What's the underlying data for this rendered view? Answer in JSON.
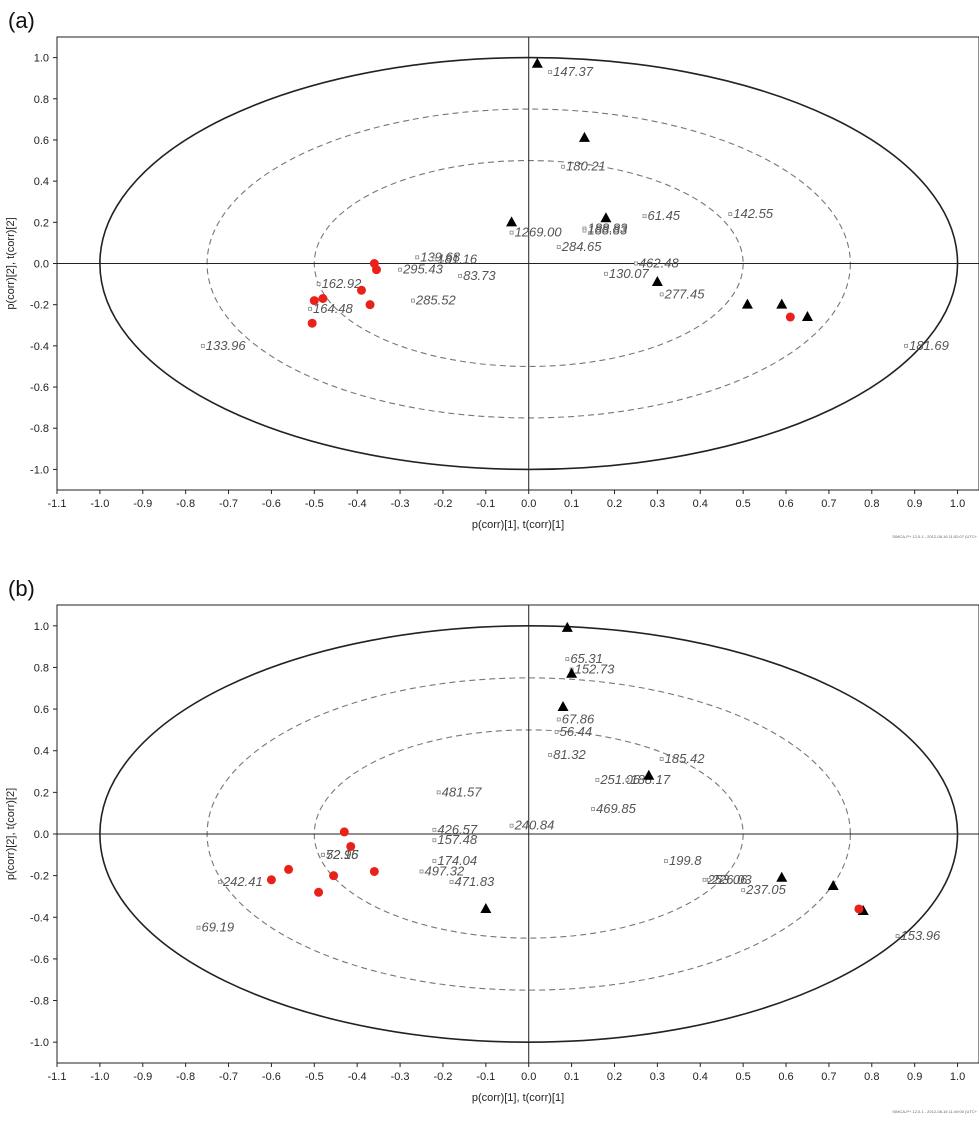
{
  "chart_data": [
    {
      "panel": "(a)",
      "type": "scatter",
      "xlabel": "p(corr)[1], t(corr)[1]",
      "ylabel": "p(corr)[2], t(corr)[2]",
      "xlim": [
        -1.1,
        1.05
      ],
      "ylim": [
        -1.1,
        1.1
      ],
      "xticks": [
        "-1.1",
        "-1.0",
        "-0.9",
        "-0.8",
        "-0.7",
        "-0.6",
        "-0.5",
        "-0.4",
        "-0.3",
        "-0.2",
        "-0.1",
        "0.0",
        "0.1",
        "0.2",
        "0.3",
        "0.4",
        "0.5",
        "0.6",
        "0.7",
        "0.8",
        "0.9",
        "1.0"
      ],
      "yticks": [
        "1.0",
        "0.8",
        "0.6",
        "0.4",
        "0.2",
        "0.0",
        "-0.2",
        "-0.4",
        "-0.6",
        "-0.8",
        "-1.0"
      ],
      "footer": "SIMCA-P+ 12.0.1 - 2012-08-16 11:52:07 (UTC+",
      "variables": [
        {
          "label": "147.37",
          "x": 0.05,
          "y": 0.93
        },
        {
          "label": "180.21",
          "x": 0.08,
          "y": 0.47
        },
        {
          "label": "61.45",
          "x": 0.27,
          "y": 0.23
        },
        {
          "label": "142.55",
          "x": 0.47,
          "y": 0.24
        },
        {
          "label": "188.83",
          "x": 0.13,
          "y": 0.17
        },
        {
          "label": "188.83",
          "x": 0.13,
          "y": 0.16
        },
        {
          "label": "1269.00",
          "x": -0.04,
          "y": 0.15
        },
        {
          "label": "284.65",
          "x": 0.07,
          "y": 0.08
        },
        {
          "label": "462.48",
          "x": 0.25,
          "y": 0.0
        },
        {
          "label": "130.07",
          "x": 0.18,
          "y": -0.05
        },
        {
          "label": "277.45",
          "x": 0.31,
          "y": -0.15
        },
        {
          "label": "181.69",
          "x": 0.88,
          "y": -0.4
        },
        {
          "label": "139.68",
          "x": -0.26,
          "y": 0.03
        },
        {
          "label": "181.16",
          "x": -0.22,
          "y": 0.02
        },
        {
          "label": "295.43",
          "x": -0.3,
          "y": -0.03
        },
        {
          "label": "83.73",
          "x": -0.16,
          "y": -0.06
        },
        {
          "label": "162.92",
          "x": -0.49,
          "y": -0.1
        },
        {
          "label": "285.52",
          "x": -0.27,
          "y": -0.18
        },
        {
          "label": "164.48",
          "x": -0.51,
          "y": -0.22
        },
        {
          "label": "133.96",
          "x": -0.76,
          "y": -0.4
        }
      ],
      "triangles": [
        {
          "x": 0.02,
          "y": 0.97
        },
        {
          "x": 0.13,
          "y": 0.61
        },
        {
          "x": -0.04,
          "y": 0.2
        },
        {
          "x": 0.18,
          "y": 0.22
        },
        {
          "x": 0.3,
          "y": -0.09
        },
        {
          "x": 0.51,
          "y": -0.2
        },
        {
          "x": 0.59,
          "y": -0.2
        },
        {
          "x": 0.65,
          "y": -0.26
        }
      ],
      "dots": [
        {
          "x": -0.36,
          "y": 0.0
        },
        {
          "x": -0.355,
          "y": -0.03
        },
        {
          "x": -0.39,
          "y": -0.13
        },
        {
          "x": -0.48,
          "y": -0.17
        },
        {
          "x": -0.5,
          "y": -0.18
        },
        {
          "x": -0.37,
          "y": -0.2
        },
        {
          "x": -0.505,
          "y": -0.29
        },
        {
          "x": 0.61,
          "y": -0.26
        }
      ]
    },
    {
      "panel": "(b)",
      "type": "scatter",
      "xlabel": "p(corr)[1], t(corr)[1]",
      "ylabel": "p(corr)[2], t(corr)[2]",
      "xlim": [
        -1.1,
        1.05
      ],
      "ylim": [
        -1.1,
        1.1
      ],
      "xticks": [
        "-1.1",
        "-1.0",
        "-0.9",
        "-0.8",
        "-0.7",
        "-0.6",
        "-0.5",
        "-0.4",
        "-0.3",
        "-0.2",
        "-0.1",
        "0.0",
        "0.1",
        "0.2",
        "0.3",
        "0.4",
        "0.5",
        "0.6",
        "0.7",
        "0.8",
        "0.9",
        "1.0"
      ],
      "yticks": [
        "1.0",
        "0.8",
        "0.6",
        "0.4",
        "0.2",
        "0.0",
        "-0.2",
        "-0.4",
        "-0.6",
        "-0.8",
        "-1.0"
      ],
      "footer": "SIMCA-P+ 12.0.1 - 2012-08-16 11:49:00 (UTC+",
      "variables": [
        {
          "label": "65.31",
          "x": 0.09,
          "y": 0.84
        },
        {
          "label": "152.73",
          "x": 0.1,
          "y": 0.79
        },
        {
          "label": "67.86",
          "x": 0.07,
          "y": 0.55
        },
        {
          "label": "56.44",
          "x": 0.065,
          "y": 0.49
        },
        {
          "label": "81.32",
          "x": 0.05,
          "y": 0.38
        },
        {
          "label": "185.42",
          "x": 0.31,
          "y": 0.36
        },
        {
          "label": "251.06",
          "x": 0.16,
          "y": 0.26
        },
        {
          "label": "188.17",
          "x": 0.23,
          "y": 0.26
        },
        {
          "label": "469.85",
          "x": 0.15,
          "y": 0.12
        },
        {
          "label": "481.57",
          "x": -0.21,
          "y": 0.2
        },
        {
          "label": "240.84",
          "x": -0.04,
          "y": 0.04
        },
        {
          "label": "426.57",
          "x": -0.22,
          "y": 0.02
        },
        {
          "label": "157.48",
          "x": -0.22,
          "y": -0.03
        },
        {
          "label": "72.96",
          "x": -0.48,
          "y": -0.1
        },
        {
          "label": "52.15",
          "x": -0.48,
          "y": -0.1
        },
        {
          "label": "174.04",
          "x": -0.22,
          "y": -0.13
        },
        {
          "label": "497.32",
          "x": -0.25,
          "y": -0.18
        },
        {
          "label": "471.83",
          "x": -0.18,
          "y": -0.23
        },
        {
          "label": "199.8",
          "x": 0.32,
          "y": -0.13
        },
        {
          "label": "253.06",
          "x": 0.41,
          "y": -0.22
        },
        {
          "label": "226.03",
          "x": 0.42,
          "y": -0.22
        },
        {
          "label": "237.05",
          "x": 0.5,
          "y": -0.27
        },
        {
          "label": "153.96",
          "x": 0.86,
          "y": -0.49
        },
        {
          "label": "242.41",
          "x": -0.72,
          "y": -0.23
        },
        {
          "label": "69.19",
          "x": -0.77,
          "y": -0.45
        }
      ],
      "triangles": [
        {
          "x": 0.09,
          "y": 0.99
        },
        {
          "x": 0.1,
          "y": 0.77
        },
        {
          "x": 0.08,
          "y": 0.61
        },
        {
          "x": 0.28,
          "y": 0.28
        },
        {
          "x": -0.1,
          "y": -0.36
        },
        {
          "x": 0.59,
          "y": -0.21
        },
        {
          "x": 0.71,
          "y": -0.25
        },
        {
          "x": 0.78,
          "y": -0.37
        }
      ],
      "dots": [
        {
          "x": -0.43,
          "y": 0.01
        },
        {
          "x": -0.415,
          "y": -0.06
        },
        {
          "x": -0.56,
          "y": -0.17
        },
        {
          "x": -0.6,
          "y": -0.22
        },
        {
          "x": -0.455,
          "y": -0.2
        },
        {
          "x": -0.36,
          "y": -0.18
        },
        {
          "x": -0.49,
          "y": -0.28
        },
        {
          "x": 0.77,
          "y": -0.36
        }
      ]
    }
  ]
}
